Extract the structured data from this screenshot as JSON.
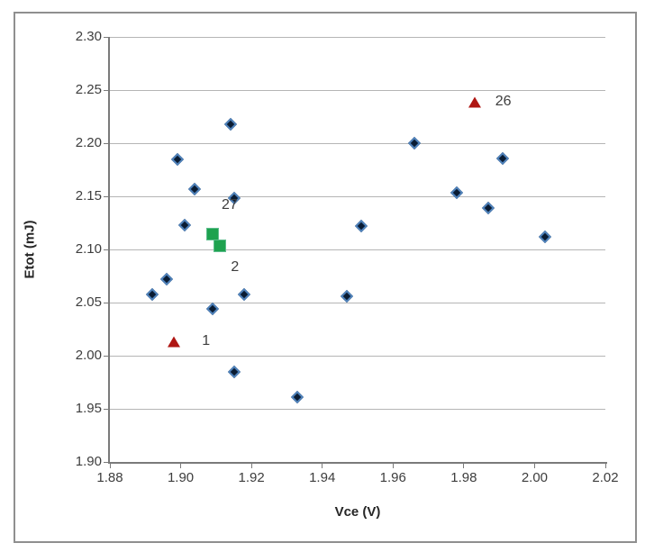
{
  "figure": {
    "background": "#ffffff",
    "border_color": "#8f8f8f"
  },
  "chart_data": {
    "type": "scatter",
    "title": "",
    "xlabel": "Vce (V)",
    "ylabel": "Etot (mJ)",
    "xlim": [
      1.88,
      2.02
    ],
    "ylim": [
      1.9,
      2.3
    ],
    "x_ticks": [
      "1.88",
      "1.90",
      "1.92",
      "1.94",
      "1.96",
      "1.98",
      "2.00",
      "2.02"
    ],
    "y_ticks": [
      "1.90",
      "1.95",
      "2.00",
      "2.05",
      "2.10",
      "2.15",
      "2.20",
      "2.25",
      "2.30"
    ],
    "grid": "horizontal-only",
    "legend": "none",
    "gridline_color": "#b5b5b5",
    "axis_color": "#7a7a7a",
    "tick_label_color": "#3d3d3d",
    "series": [
      {
        "name": "measurements",
        "marker": "diamond",
        "fill_color": "#0a1c33",
        "edge_color": "#4e81ba",
        "points": [
          {
            "x": 1.914,
            "y": 2.218
          },
          {
            "x": 1.899,
            "y": 2.185
          },
          {
            "x": 1.904,
            "y": 2.157
          },
          {
            "x": 1.915,
            "y": 2.148
          },
          {
            "x": 1.901,
            "y": 2.123
          },
          {
            "x": 1.951,
            "y": 2.122
          },
          {
            "x": 1.966,
            "y": 2.2
          },
          {
            "x": 1.991,
            "y": 2.186
          },
          {
            "x": 1.978,
            "y": 2.153
          },
          {
            "x": 1.987,
            "y": 2.139
          },
          {
            "x": 2.003,
            "y": 2.112
          },
          {
            "x": 1.896,
            "y": 2.072
          },
          {
            "x": 1.892,
            "y": 2.058
          },
          {
            "x": 1.918,
            "y": 2.058
          },
          {
            "x": 1.909,
            "y": 2.044
          },
          {
            "x": 1.947,
            "y": 2.056
          },
          {
            "x": 1.915,
            "y": 1.985
          },
          {
            "x": 1.933,
            "y": 1.961
          }
        ]
      },
      {
        "name": "highlighted-triangles",
        "marker": "triangle",
        "fill_color": "#af1613",
        "edge_color": "#8c100e",
        "points": [
          {
            "x": 1.983,
            "y": 2.238,
            "label": "26",
            "label_dx": 32,
            "label_dy": -1
          },
          {
            "x": 1.898,
            "y": 2.013,
            "label": "1",
            "label_dx": 36,
            "label_dy": -1
          }
        ]
      },
      {
        "name": "highlighted-squares",
        "marker": "square",
        "fill_color": "#1ea24f",
        "edge_color": "#5dbd8c",
        "points": [
          {
            "x": 1.909,
            "y": 2.114,
            "label": "27",
            "label_dx": 19,
            "label_dy": -32
          },
          {
            "x": 1.911,
            "y": 2.103,
            "label": "2",
            "label_dx": 17,
            "label_dy": 24
          }
        ]
      }
    ]
  }
}
